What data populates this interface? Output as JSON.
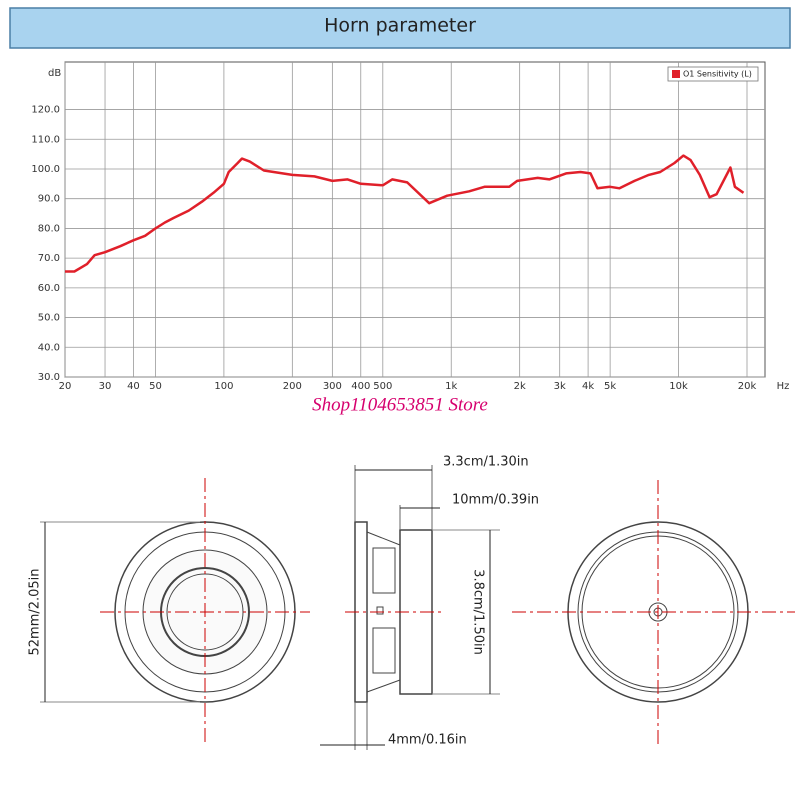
{
  "chart_data": {
    "type": "line",
    "title": "Horn parameter",
    "x_label": "Hz",
    "y_label": "dB",
    "log_x": true,
    "grid": true,
    "legend": "top-right",
    "xlim": [
      20,
      24000
    ],
    "ylim": [
      30,
      136
    ],
    "xticks": [
      20,
      30,
      40,
      50,
      100,
      200,
      300,
      400,
      500,
      {
        "value": 1000,
        "label": "1k"
      },
      {
        "value": 2000,
        "label": "2k"
      },
      {
        "value": 3000,
        "label": "3k"
      },
      {
        "value": 4000,
        "label": "4k"
      },
      {
        "value": 5000,
        "label": "5k"
      },
      {
        "value": 10000,
        "label": "10k"
      },
      {
        "value": 20000,
        "label": "20k"
      }
    ],
    "yticks": [
      {
        "value": 30,
        "label": "30.0"
      },
      {
        "value": 40,
        "label": "40.0"
      },
      {
        "value": 50,
        "label": "50.0"
      },
      {
        "value": 60,
        "label": "60.0"
      },
      {
        "value": 70,
        "label": "70.0"
      },
      {
        "value": 80,
        "label": "80.0"
      },
      {
        "value": 90,
        "label": "90.0"
      },
      {
        "value": 100,
        "label": "100.0"
      },
      {
        "value": 110,
        "label": "110.0"
      },
      {
        "value": 120,
        "label": "120.0"
      }
    ],
    "x": [
      20,
      22,
      25,
      27,
      30,
      35,
      40,
      45,
      50,
      55,
      60,
      70,
      80,
      90,
      100,
      105,
      115,
      120,
      130,
      150,
      200,
      250,
      300,
      350,
      400,
      500,
      550,
      640,
      800,
      960,
      1200,
      1400,
      1800,
      1950,
      2400,
      2700,
      3200,
      3700,
      4100,
      4400,
      5000,
      5500,
      6400,
      7400,
      8300,
      9600,
      10500,
      11300,
      12400,
      13700,
      14700,
      16900,
      17700,
      19300
    ],
    "series": [
      {
        "name": "O1 Sensitivity (L)",
        "color": "#e0202a",
        "values": [
          65.5,
          65.5,
          68,
          71,
          72,
          74,
          76,
          77.5,
          80,
          82,
          83.5,
          86,
          89,
          92,
          95,
          99,
          102,
          103.5,
          102.5,
          99.5,
          98,
          97.5,
          96,
          96.5,
          95,
          94.5,
          96.5,
          95.5,
          88.5,
          91,
          92.5,
          94,
          94,
          96,
          97,
          96.5,
          98.5,
          99,
          98.5,
          93.5,
          94,
          93.5,
          96,
          98,
          99,
          102,
          104.5,
          103,
          98,
          90.5,
          91.5,
          100.5,
          94,
          92
        ]
      }
    ]
  },
  "watermark": "Shop1104653851 Store",
  "diagram": {
    "labels": [
      "3.3cm/1.30in",
      "10mm/0.39in",
      "3.8cm/1.50in",
      "4mm/0.16in",
      "52mm/2.05in"
    ]
  }
}
